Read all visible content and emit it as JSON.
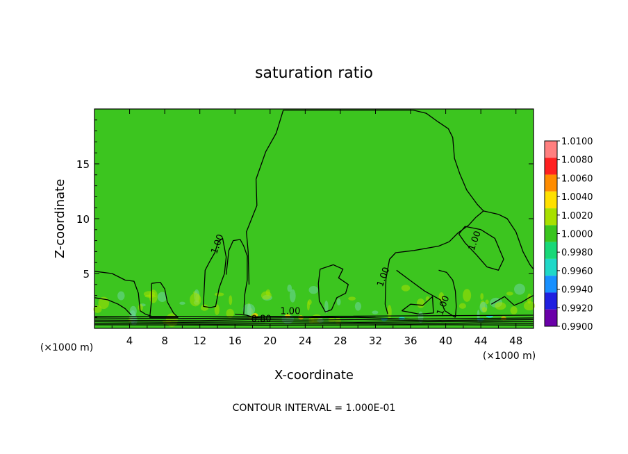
{
  "chart_data": {
    "type": "heatmap",
    "title": "saturation ratio",
    "xlabel": "X-coordinate",
    "ylabel": "Z-coordinate",
    "x_unit_left": "(×1000 m)",
    "x_unit_right": "(×1000 m)",
    "footer": "CONTOUR INTERVAL = 1.000E-01",
    "xlim": [
      0,
      50
    ],
    "ylim": [
      0,
      20
    ],
    "x_ticks": [
      4,
      8,
      12,
      16,
      20,
      24,
      28,
      32,
      36,
      40,
      44,
      48
    ],
    "y_ticks": [
      5,
      10,
      15
    ],
    "background_value": 1.0,
    "contour_labels": [
      {
        "text": "1.00",
        "x": 14.3,
        "z": 7.6
      },
      {
        "text": "1.00",
        "x": 33.2,
        "z": 4.6
      },
      {
        "text": "1.00",
        "x": 40.0,
        "z": 2.0
      },
      {
        "text": "1.00",
        "x": 43.6,
        "z": 7.9
      },
      {
        "text": "1.00",
        "x": 22.3,
        "z": 1.3
      },
      {
        "text": "0.80",
        "x": 19.0,
        "z": 0.6
      }
    ],
    "colorbar": {
      "labels": [
        "1.0100",
        "1.0080",
        "1.0060",
        "1.0040",
        "1.0020",
        "1.0000",
        "0.9980",
        "0.9960",
        "0.9940",
        "0.9920",
        "0.9900"
      ],
      "colors": [
        "#ff7f7f",
        "#ff2020",
        "#ff8c00",
        "#ffe000",
        "#a8e000",
        "#3ac51e",
        "#18d878",
        "#20d8c8",
        "#1890ff",
        "#2020e0",
        "#6a00a8"
      ]
    },
    "colors": {
      "field": "#3cc51f",
      "warm": "#a8e000",
      "cool": "#6ed6a0",
      "line": "#000000"
    }
  }
}
